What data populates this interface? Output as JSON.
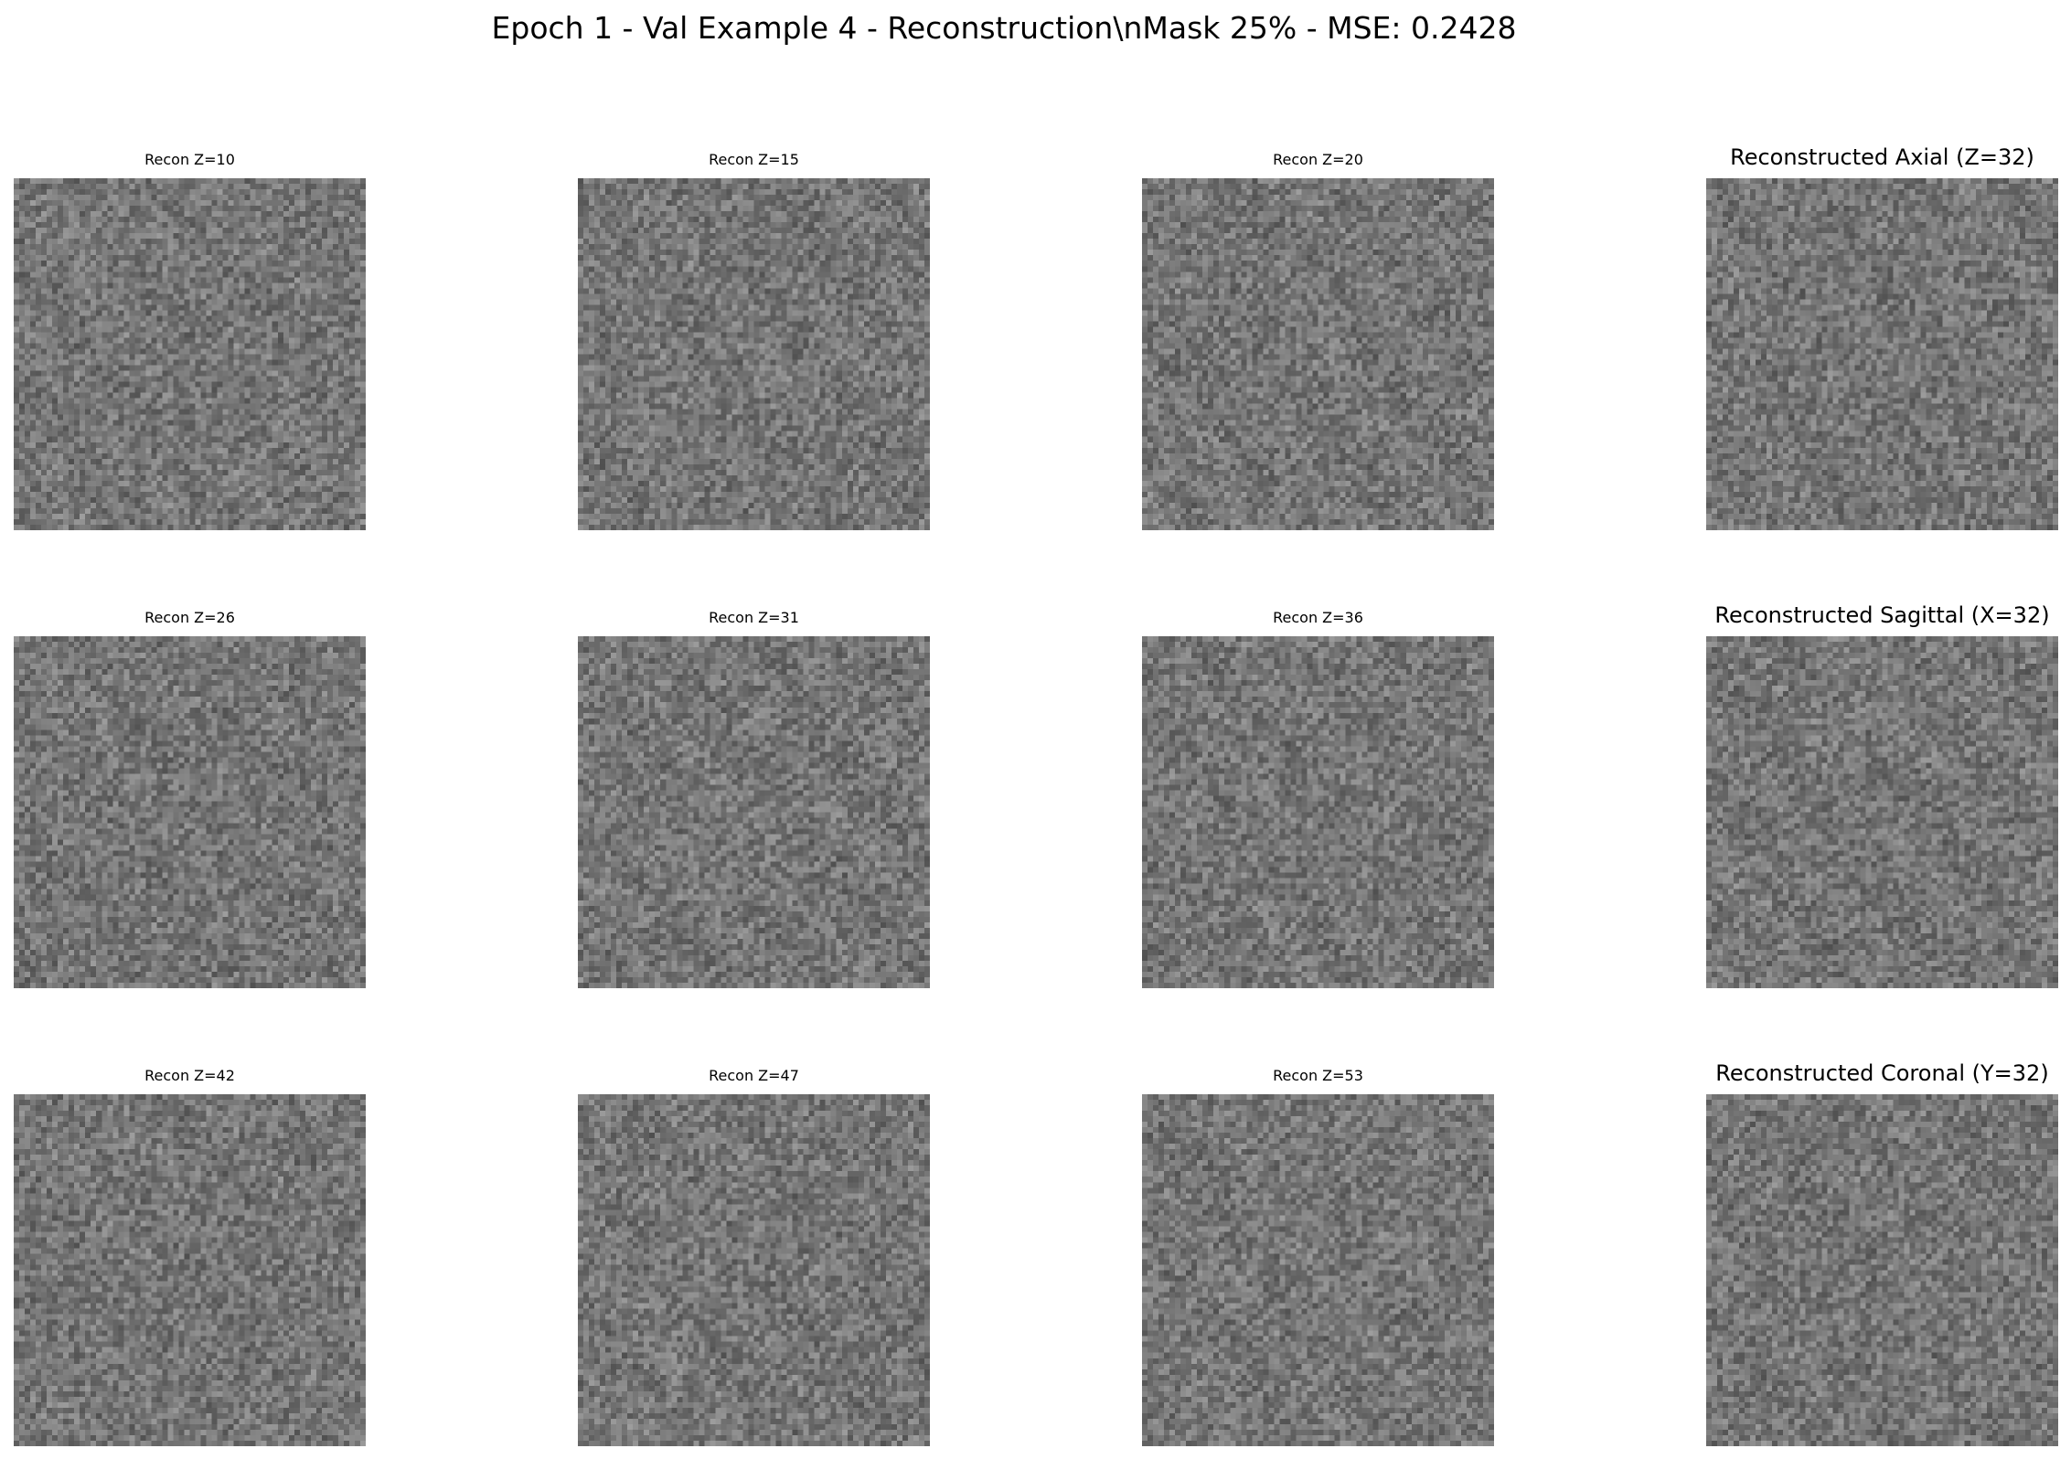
{
  "title": "Epoch 1 - Val Example 4 - Reconstruction\\nMask 25% - MSE: 0.2428",
  "panels": [
    {
      "title": "Recon Z=10",
      "size": "small",
      "seed": 10
    },
    {
      "title": "Recon Z=15",
      "size": "small",
      "seed": 15
    },
    {
      "title": "Recon Z=20",
      "size": "small",
      "seed": 20
    },
    {
      "title": "Reconstructed Axial (Z=32)",
      "size": "large",
      "seed": 132
    },
    {
      "title": "Recon Z=26",
      "size": "small",
      "seed": 26
    },
    {
      "title": "Recon Z=31",
      "size": "small",
      "seed": 31
    },
    {
      "title": "Recon Z=36",
      "size": "small",
      "seed": 36
    },
    {
      "title": "Reconstructed Sagittal (X=32)",
      "size": "large",
      "seed": 232
    },
    {
      "title": "Recon Z=42",
      "size": "small",
      "seed": 42
    },
    {
      "title": "Recon Z=47",
      "size": "small",
      "seed": 47
    },
    {
      "title": "Recon Z=53",
      "size": "small",
      "seed": 53
    },
    {
      "title": "Reconstructed Coronal (Y=32)",
      "size": "large",
      "seed": 332
    }
  ],
  "image_resolution": 64,
  "colormap": "gray",
  "colors": {
    "background": "#ffffff",
    "text": "#000000"
  }
}
